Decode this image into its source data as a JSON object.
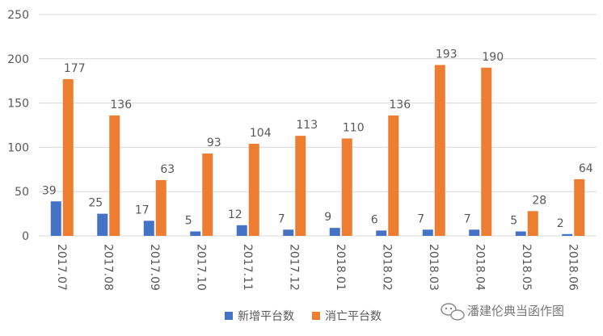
{
  "chart_data": {
    "type": "bar",
    "categories": [
      "2017.07",
      "2017.08",
      "2017.09",
      "2017.10",
      "2017.11",
      "2017.12",
      "2018.01",
      "2018.02",
      "2018.03",
      "2018.04",
      "2018.05",
      "2018.06"
    ],
    "series": [
      {
        "name": "新增平台数",
        "color": "#4472c4",
        "values": [
          39,
          25,
          17,
          5,
          12,
          7,
          9,
          6,
          7,
          7,
          5,
          2
        ]
      },
      {
        "name": "消亡平台数",
        "color": "#ed7d31",
        "values": [
          177,
          136,
          63,
          93,
          104,
          113,
          110,
          136,
          193,
          190,
          28,
          64
        ]
      }
    ],
    "ylim": [
      0,
      250
    ],
    "yticks": [
      0,
      50,
      100,
      150,
      200,
      250
    ],
    "grid": true,
    "legend_position": "bottom"
  },
  "watermark": {
    "text": "潘建伦典当函作图",
    "icon": "wechat-bubble-icon"
  }
}
